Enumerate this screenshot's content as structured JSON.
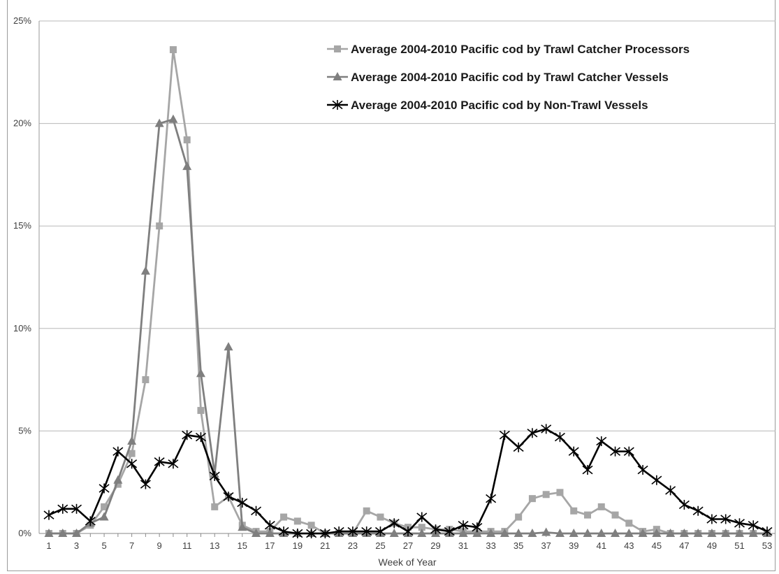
{
  "chart_data": {
    "type": "line",
    "title": "",
    "xlabel": "Week of Year",
    "ylabel": "",
    "x": [
      1,
      2,
      3,
      4,
      5,
      6,
      7,
      8,
      9,
      10,
      11,
      12,
      13,
      14,
      15,
      16,
      17,
      18,
      19,
      20,
      21,
      22,
      23,
      24,
      25,
      26,
      27,
      28,
      29,
      30,
      31,
      32,
      33,
      34,
      35,
      36,
      37,
      38,
      39,
      40,
      41,
      42,
      43,
      44,
      45,
      46,
      47,
      48,
      49,
      50,
      51,
      52,
      53
    ],
    "x_tick_labels": [
      "1",
      "3",
      "5",
      "7",
      "9",
      "11",
      "13",
      "15",
      "17",
      "19",
      "21",
      "23",
      "25",
      "27",
      "29",
      "31",
      "33",
      "35",
      "37",
      "39",
      "41",
      "43",
      "45",
      "47",
      "49",
      "51",
      "53"
    ],
    "y_tick_labels": [
      "0%",
      "5%",
      "10%",
      "15%",
      "20%",
      "25%"
    ],
    "ylim": [
      0,
      25
    ],
    "y_unit": "percent",
    "grid": "horizontal",
    "legend_position": "top-right",
    "series": [
      {
        "name": "Average 2004-2010 Pacific cod by Trawl Catcher Processors",
        "color": "#a6a6a6",
        "marker": "square",
        "values": [
          0,
          0,
          0,
          0.4,
          1.3,
          2.4,
          3.9,
          7.5,
          15,
          23.6,
          19.2,
          6,
          1.3,
          1.8,
          0.4,
          0.1,
          0.1,
          0.8,
          0.6,
          0.4,
          0,
          0,
          0,
          1.1,
          0.8,
          0.5,
          0.3,
          0.3,
          0.2,
          0.2,
          0.1,
          0.1,
          0.1,
          0.1,
          0.8,
          1.7,
          1.9,
          2,
          1.1,
          0.9,
          1.3,
          0.9,
          0.5,
          0.1,
          0.2,
          0,
          0,
          0,
          0,
          0,
          0,
          0,
          0
        ]
      },
      {
        "name": "Average 2004-2010 Pacific cod by Trawl Catcher Vessels",
        "color": "#7f7f7f",
        "marker": "triangle",
        "values": [
          0,
          0,
          0,
          0.5,
          0.8,
          2.6,
          4.5,
          12.8,
          20,
          20.2,
          17.9,
          7.8,
          2.9,
          9.1,
          0.3,
          0,
          0,
          0,
          0,
          0,
          0,
          0,
          0,
          0,
          0,
          0,
          0,
          0,
          0,
          0,
          0,
          0,
          0,
          0,
          0,
          0,
          0.05,
          0,
          0,
          0,
          0,
          0,
          0,
          0,
          0,
          0,
          0,
          0,
          0,
          0,
          0,
          0,
          0
        ]
      },
      {
        "name": "Average 2004-2010 Pacific cod by Non-Trawl Vessels",
        "color": "#000000",
        "marker": "star",
        "values": [
          0.9,
          1.2,
          1.2,
          0.6,
          2.2,
          4,
          3.4,
          2.4,
          3.5,
          3.4,
          4.8,
          4.7,
          2.8,
          1.8,
          1.5,
          1.1,
          0.4,
          0.1,
          0,
          0,
          0,
          0.1,
          0.1,
          0.1,
          0.1,
          0.5,
          0.1,
          0.8,
          0.2,
          0.1,
          0.4,
          0.3,
          1.7,
          4.8,
          4.2,
          4.9,
          5.1,
          4.7,
          4,
          3.1,
          4.5,
          4,
          4,
          3.1,
          2.6,
          2.1,
          1.4,
          1.1,
          0.7,
          0.7,
          0.5,
          0.4,
          0.1
        ]
      }
    ]
  }
}
